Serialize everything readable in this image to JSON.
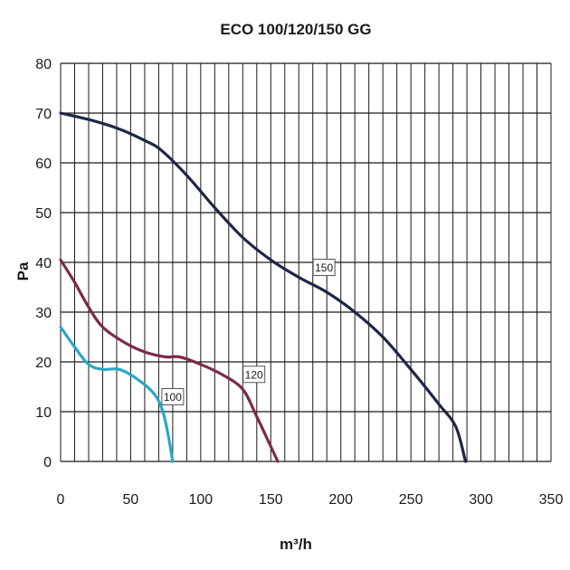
{
  "chart_data": {
    "type": "line",
    "title": "ECO 100/120/150 GG",
    "xlabel": "m³/h",
    "ylabel": "Pa",
    "xlim": [
      0,
      350
    ],
    "ylim": [
      0,
      80
    ],
    "x_ticks": [
      "0",
      "50",
      "100",
      "150",
      "200",
      "250",
      "300",
      "350"
    ],
    "y_ticks": [
      "0",
      "10",
      "20",
      "30",
      "40",
      "50",
      "60",
      "70",
      "80"
    ],
    "x_minor_step": 10,
    "y_major_step": 10,
    "grid": true,
    "series": [
      {
        "name": "150",
        "color": "#1e2747",
        "points": [
          [
            0,
            70
          ],
          [
            20,
            68.7
          ],
          [
            40,
            67
          ],
          [
            60,
            64.5
          ],
          [
            72,
            62.5
          ],
          [
            90,
            57.5
          ],
          [
            110,
            51
          ],
          [
            130,
            45
          ],
          [
            150,
            40.5
          ],
          [
            170,
            37
          ],
          [
            190,
            34
          ],
          [
            210,
            30
          ],
          [
            230,
            25
          ],
          [
            250,
            18.5
          ],
          [
            270,
            11.5
          ],
          [
            282,
            7
          ],
          [
            289,
            0
          ]
        ]
      },
      {
        "name": "120",
        "color": "#7d2a4c",
        "points": [
          [
            0,
            40.5
          ],
          [
            10,
            36
          ],
          [
            20,
            31
          ],
          [
            30,
            27
          ],
          [
            45,
            24
          ],
          [
            60,
            22
          ],
          [
            75,
            21
          ],
          [
            85,
            21
          ],
          [
            100,
            19.5
          ],
          [
            115,
            17.5
          ],
          [
            130,
            14.5
          ],
          [
            140,
            9
          ],
          [
            150,
            3
          ],
          [
            155,
            0
          ]
        ]
      },
      {
        "name": "100",
        "color": "#29a7c8",
        "points": [
          [
            0,
            27
          ],
          [
            10,
            23
          ],
          [
            20,
            19.5
          ],
          [
            30,
            18.5
          ],
          [
            42,
            18.5
          ],
          [
            55,
            16.5
          ],
          [
            67,
            13.5
          ],
          [
            73,
            10
          ],
          [
            77,
            5
          ],
          [
            80,
            0
          ]
        ]
      }
    ]
  }
}
